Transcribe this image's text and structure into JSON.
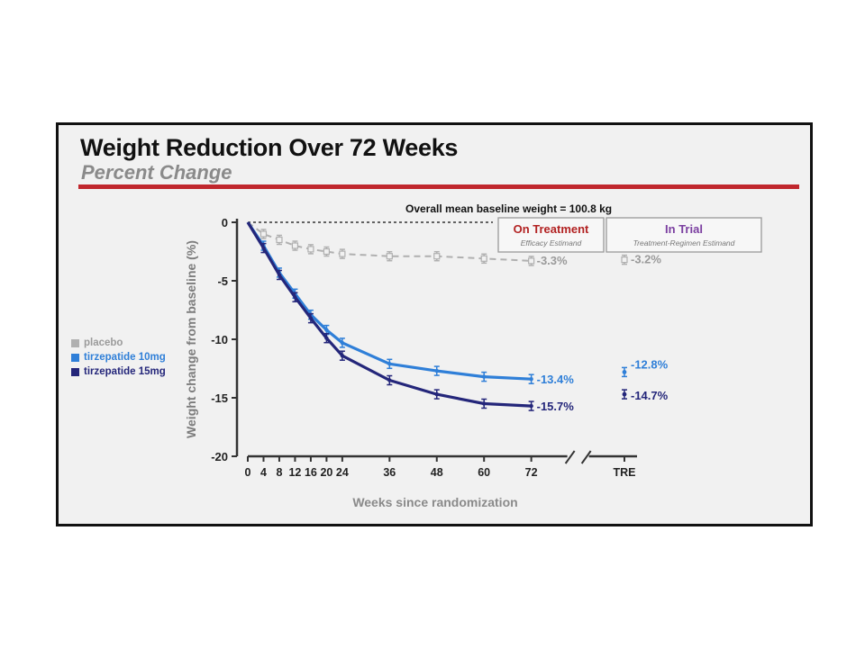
{
  "title": "Weight Reduction Over 72 Weeks",
  "subtitle": "Percent Change",
  "chart_data": {
    "type": "line",
    "title": "Weight Reduction Over 72 Weeks",
    "subtitle": "Percent Change",
    "ylabel": "Weight change from baseline (%)",
    "xlabel": "Weeks since randomization",
    "ylim": [
      -20,
      0
    ],
    "yticks": [
      0,
      -5,
      -10,
      -15,
      -20
    ],
    "x": [
      0,
      4,
      8,
      12,
      16,
      20,
      24,
      36,
      48,
      60,
      72
    ],
    "xtick_labels": [
      "0",
      "4",
      "8",
      "12",
      "16",
      "20",
      "24",
      "36",
      "48",
      "60",
      "72"
    ],
    "extra_category": "TRE",
    "annotation": "Overall mean baseline weight = 100.8 kg",
    "panels": [
      {
        "title": "On Treatment",
        "subtitle": "Efficacy Estimand",
        "color": "#b22222"
      },
      {
        "title": "In Trial",
        "subtitle": "Treatment-Regimen Estimand",
        "color": "#7b3fa0"
      }
    ],
    "series": [
      {
        "name": "placebo",
        "color": "#b0b0b0",
        "values": [
          0,
          -1.0,
          -1.5,
          -2.0,
          -2.3,
          -2.5,
          -2.7,
          -2.9,
          -2.9,
          -3.1,
          -3.3
        ],
        "end_label": "-3.3%",
        "tre_value": -3.2,
        "tre_label": "-3.2%"
      },
      {
        "name": "tirzepatide 10mg",
        "color": "#2f7fd8",
        "values": [
          0,
          -2.0,
          -4.3,
          -6.1,
          -7.9,
          -9.2,
          -10.3,
          -12.1,
          -12.7,
          -13.2,
          -13.4
        ],
        "end_label": "-13.4%",
        "tre_value": -12.8,
        "tre_label": "-12.8%"
      },
      {
        "name": "tirzepatide 15mg",
        "color": "#24267a",
        "values": [
          0,
          -2.2,
          -4.5,
          -6.4,
          -8.2,
          -9.9,
          -11.4,
          -13.5,
          -14.7,
          -15.5,
          -15.7
        ],
        "end_label": "-15.7%",
        "tre_value": -14.7,
        "tre_label": "-14.7%"
      }
    ]
  }
}
